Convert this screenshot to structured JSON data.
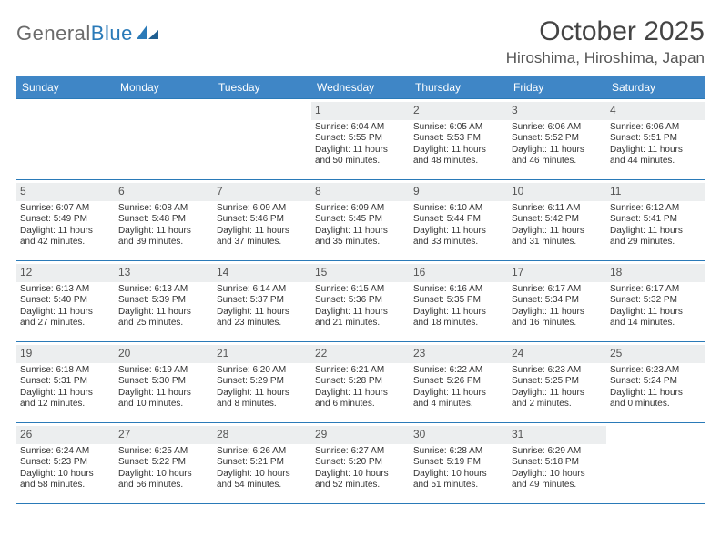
{
  "logo": {
    "general": "General",
    "blue": "Blue"
  },
  "title": "October 2025",
  "location": "Hiroshima, Hiroshima, Japan",
  "colors": {
    "header_bg": "#3f86c6",
    "header_text": "#ffffff",
    "rule": "#2a7ab8",
    "daynum_bg": "#eceeef",
    "text": "#333333"
  },
  "layout": {
    "columns": 7,
    "rows": 5
  },
  "weekdays": [
    "Sunday",
    "Monday",
    "Tuesday",
    "Wednesday",
    "Thursday",
    "Friday",
    "Saturday"
  ],
  "weeks": [
    [
      null,
      null,
      null,
      {
        "n": "1",
        "sr": "Sunrise: 6:04 AM",
        "ss": "Sunset: 5:55 PM",
        "d1": "Daylight: 11 hours",
        "d2": "and 50 minutes."
      },
      {
        "n": "2",
        "sr": "Sunrise: 6:05 AM",
        "ss": "Sunset: 5:53 PM",
        "d1": "Daylight: 11 hours",
        "d2": "and 48 minutes."
      },
      {
        "n": "3",
        "sr": "Sunrise: 6:06 AM",
        "ss": "Sunset: 5:52 PM",
        "d1": "Daylight: 11 hours",
        "d2": "and 46 minutes."
      },
      {
        "n": "4",
        "sr": "Sunrise: 6:06 AM",
        "ss": "Sunset: 5:51 PM",
        "d1": "Daylight: 11 hours",
        "d2": "and 44 minutes."
      }
    ],
    [
      {
        "n": "5",
        "sr": "Sunrise: 6:07 AM",
        "ss": "Sunset: 5:49 PM",
        "d1": "Daylight: 11 hours",
        "d2": "and 42 minutes."
      },
      {
        "n": "6",
        "sr": "Sunrise: 6:08 AM",
        "ss": "Sunset: 5:48 PM",
        "d1": "Daylight: 11 hours",
        "d2": "and 39 minutes."
      },
      {
        "n": "7",
        "sr": "Sunrise: 6:09 AM",
        "ss": "Sunset: 5:46 PM",
        "d1": "Daylight: 11 hours",
        "d2": "and 37 minutes."
      },
      {
        "n": "8",
        "sr": "Sunrise: 6:09 AM",
        "ss": "Sunset: 5:45 PM",
        "d1": "Daylight: 11 hours",
        "d2": "and 35 minutes."
      },
      {
        "n": "9",
        "sr": "Sunrise: 6:10 AM",
        "ss": "Sunset: 5:44 PM",
        "d1": "Daylight: 11 hours",
        "d2": "and 33 minutes."
      },
      {
        "n": "10",
        "sr": "Sunrise: 6:11 AM",
        "ss": "Sunset: 5:42 PM",
        "d1": "Daylight: 11 hours",
        "d2": "and 31 minutes."
      },
      {
        "n": "11",
        "sr": "Sunrise: 6:12 AM",
        "ss": "Sunset: 5:41 PM",
        "d1": "Daylight: 11 hours",
        "d2": "and 29 minutes."
      }
    ],
    [
      {
        "n": "12",
        "sr": "Sunrise: 6:13 AM",
        "ss": "Sunset: 5:40 PM",
        "d1": "Daylight: 11 hours",
        "d2": "and 27 minutes."
      },
      {
        "n": "13",
        "sr": "Sunrise: 6:13 AM",
        "ss": "Sunset: 5:39 PM",
        "d1": "Daylight: 11 hours",
        "d2": "and 25 minutes."
      },
      {
        "n": "14",
        "sr": "Sunrise: 6:14 AM",
        "ss": "Sunset: 5:37 PM",
        "d1": "Daylight: 11 hours",
        "d2": "and 23 minutes."
      },
      {
        "n": "15",
        "sr": "Sunrise: 6:15 AM",
        "ss": "Sunset: 5:36 PM",
        "d1": "Daylight: 11 hours",
        "d2": "and 21 minutes."
      },
      {
        "n": "16",
        "sr": "Sunrise: 6:16 AM",
        "ss": "Sunset: 5:35 PM",
        "d1": "Daylight: 11 hours",
        "d2": "and 18 minutes."
      },
      {
        "n": "17",
        "sr": "Sunrise: 6:17 AM",
        "ss": "Sunset: 5:34 PM",
        "d1": "Daylight: 11 hours",
        "d2": "and 16 minutes."
      },
      {
        "n": "18",
        "sr": "Sunrise: 6:17 AM",
        "ss": "Sunset: 5:32 PM",
        "d1": "Daylight: 11 hours",
        "d2": "and 14 minutes."
      }
    ],
    [
      {
        "n": "19",
        "sr": "Sunrise: 6:18 AM",
        "ss": "Sunset: 5:31 PM",
        "d1": "Daylight: 11 hours",
        "d2": "and 12 minutes."
      },
      {
        "n": "20",
        "sr": "Sunrise: 6:19 AM",
        "ss": "Sunset: 5:30 PM",
        "d1": "Daylight: 11 hours",
        "d2": "and 10 minutes."
      },
      {
        "n": "21",
        "sr": "Sunrise: 6:20 AM",
        "ss": "Sunset: 5:29 PM",
        "d1": "Daylight: 11 hours",
        "d2": "and 8 minutes."
      },
      {
        "n": "22",
        "sr": "Sunrise: 6:21 AM",
        "ss": "Sunset: 5:28 PM",
        "d1": "Daylight: 11 hours",
        "d2": "and 6 minutes."
      },
      {
        "n": "23",
        "sr": "Sunrise: 6:22 AM",
        "ss": "Sunset: 5:26 PM",
        "d1": "Daylight: 11 hours",
        "d2": "and 4 minutes."
      },
      {
        "n": "24",
        "sr": "Sunrise: 6:23 AM",
        "ss": "Sunset: 5:25 PM",
        "d1": "Daylight: 11 hours",
        "d2": "and 2 minutes."
      },
      {
        "n": "25",
        "sr": "Sunrise: 6:23 AM",
        "ss": "Sunset: 5:24 PM",
        "d1": "Daylight: 11 hours",
        "d2": "and 0 minutes."
      }
    ],
    [
      {
        "n": "26",
        "sr": "Sunrise: 6:24 AM",
        "ss": "Sunset: 5:23 PM",
        "d1": "Daylight: 10 hours",
        "d2": "and 58 minutes."
      },
      {
        "n": "27",
        "sr": "Sunrise: 6:25 AM",
        "ss": "Sunset: 5:22 PM",
        "d1": "Daylight: 10 hours",
        "d2": "and 56 minutes."
      },
      {
        "n": "28",
        "sr": "Sunrise: 6:26 AM",
        "ss": "Sunset: 5:21 PM",
        "d1": "Daylight: 10 hours",
        "d2": "and 54 minutes."
      },
      {
        "n": "29",
        "sr": "Sunrise: 6:27 AM",
        "ss": "Sunset: 5:20 PM",
        "d1": "Daylight: 10 hours",
        "d2": "and 52 minutes."
      },
      {
        "n": "30",
        "sr": "Sunrise: 6:28 AM",
        "ss": "Sunset: 5:19 PM",
        "d1": "Daylight: 10 hours",
        "d2": "and 51 minutes."
      },
      {
        "n": "31",
        "sr": "Sunrise: 6:29 AM",
        "ss": "Sunset: 5:18 PM",
        "d1": "Daylight: 10 hours",
        "d2": "and 49 minutes."
      },
      null
    ]
  ]
}
